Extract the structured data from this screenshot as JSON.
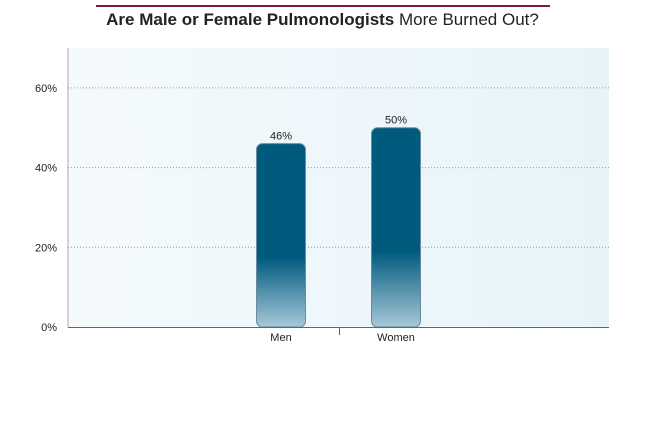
{
  "title": {
    "bold_part": "Are Male or Female Pulmonologists",
    "rest_part": " More Burned Out?"
  },
  "colors": {
    "rule": "#7a1f35",
    "bar_dark": "#005a7e",
    "bar_light": "#a6c8d8",
    "plot_bg_left": "#f5fafc",
    "plot_bg_right": "#e6f4fa"
  },
  "chart_data": {
    "type": "bar",
    "categories": [
      "Men",
      "Women"
    ],
    "values": [
      46,
      50
    ],
    "value_labels": [
      "46%",
      "50%"
    ],
    "ylim": [
      0,
      70
    ],
    "yticks": [
      0,
      20,
      40,
      60
    ],
    "ytick_labels": [
      "0%",
      "20%",
      "40%",
      "60%"
    ],
    "xlabel": "",
    "ylabel": "",
    "grid": "horizontal dotted",
    "legend": "none"
  }
}
